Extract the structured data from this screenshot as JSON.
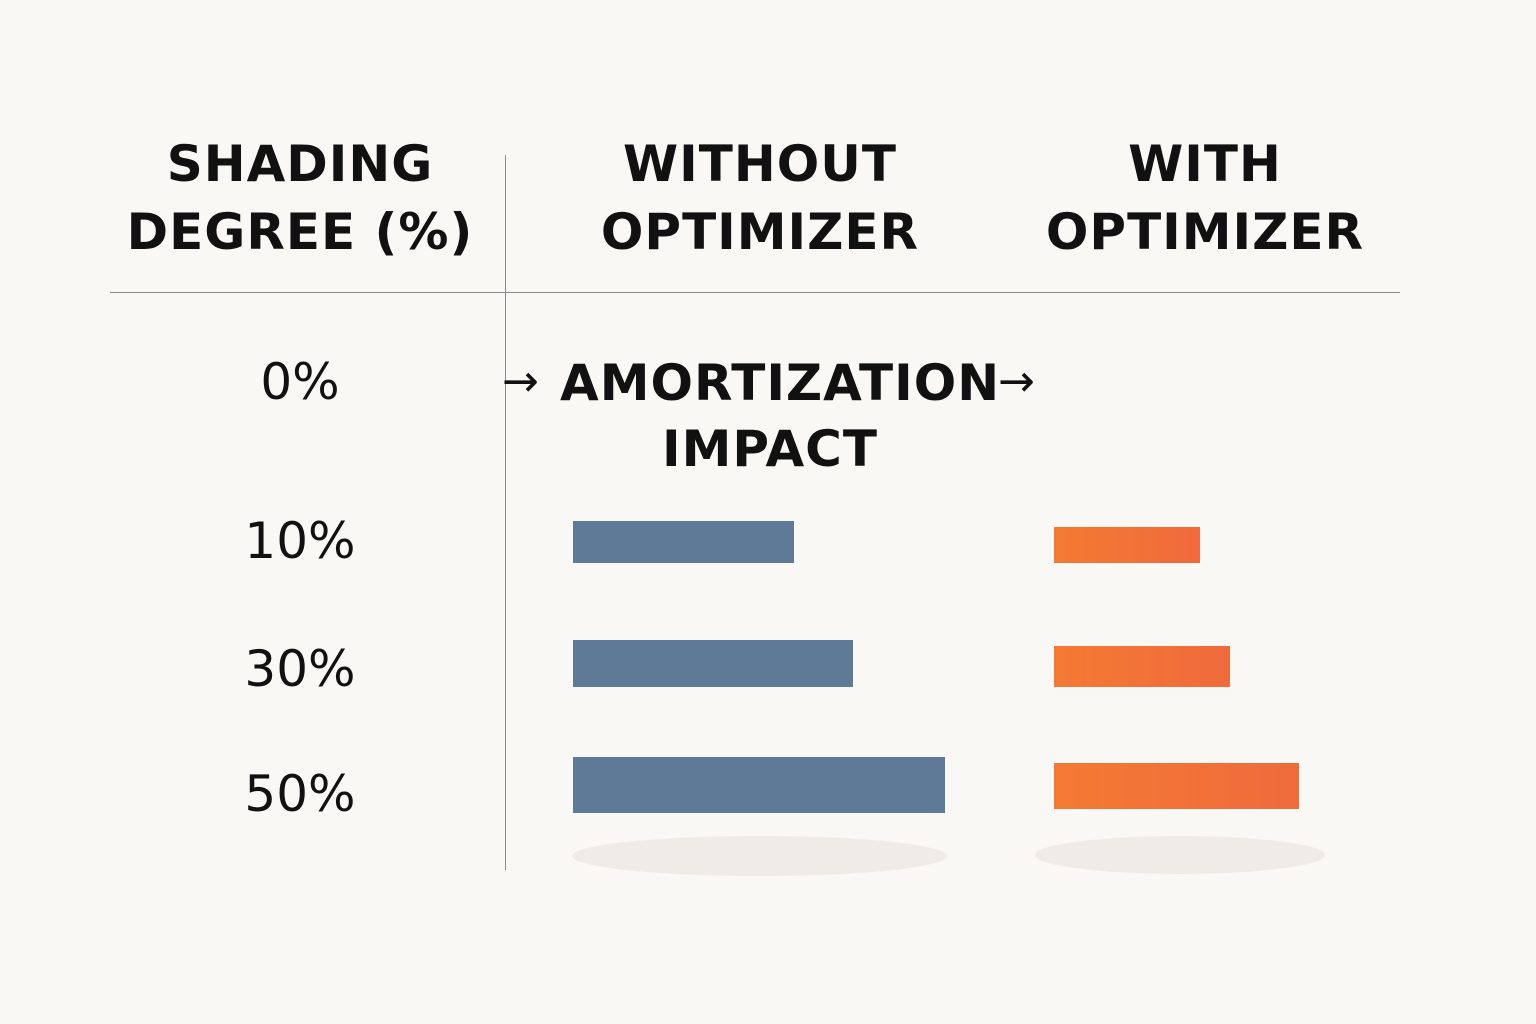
{
  "chart_data": {
    "type": "bar",
    "orientation": "horizontal",
    "header": {
      "col1": [
        "SHADING",
        "DEGREE (%)"
      ],
      "col2": [
        "WITHOUT",
        "OPTIMIZER"
      ],
      "col3": [
        "WITH",
        "OPTIMIZER"
      ]
    },
    "rows": [
      "0%",
      "10%",
      "30%",
      "50%"
    ],
    "annotation": [
      "AMORTIZATION",
      "IMPACT"
    ],
    "arrow": "→",
    "series": [
      {
        "color": "#5f7a97",
        "values": [
          null,
          221,
          280,
          372
        ]
      },
      {
        "color": "#f47a33",
        "values": [
          null,
          146,
          176,
          245
        ]
      }
    ],
    "xlim": [
      0,
      400
    ],
    "grid": false
  }
}
